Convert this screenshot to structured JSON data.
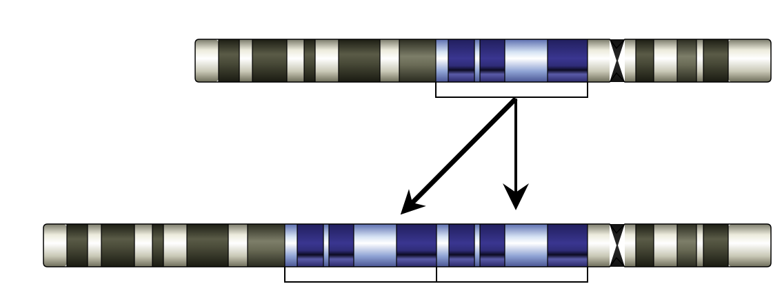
{
  "diagram": {
    "kind": "chromosome-duplication",
    "colors": {
      "background": "#ffffff",
      "outline": "#000000",
      "band_dark": "#3e3f2f",
      "band_mid": "#62634f",
      "band_light": "#ecebdc",
      "duplicated_dark": "#2f2c78",
      "duplicated_light": "#d6e3f4",
      "centromere": "#111111"
    },
    "original_chromosome": {
      "duplicated_segment_count": 1,
      "p_arm_bands": [
        "light",
        "dark",
        "light",
        "dark",
        "light",
        "dark",
        "light",
        "dark",
        "light",
        "mid",
        "light",
        "dup-light",
        "dup-dark",
        "dup-light",
        "dup-dark",
        "dup-light",
        "dup-dark",
        "light"
      ],
      "q_arm_bands": [
        "light",
        "dark",
        "light",
        "mid",
        "dark",
        "light",
        "dark",
        "light"
      ]
    },
    "duplicated_chromosome": {
      "duplicated_segment_count": 2,
      "p_arm_bands": [
        "light",
        "dark",
        "light",
        "dark",
        "light",
        "dark",
        "light",
        "dark",
        "light",
        "mid",
        "light",
        "dark",
        "dup-light",
        "dup-dark",
        "dup-light",
        "dup-dark",
        "dup-light",
        "dup-dark",
        "dup-light",
        "dup-dark",
        "dup-light",
        "dup-dark",
        "dup-light",
        "dup-dark",
        "light"
      ],
      "q_arm_bands": [
        "light",
        "dark",
        "light",
        "mid",
        "dark",
        "light",
        "dark",
        "light"
      ]
    },
    "arrows": [
      {
        "from": "original-segment",
        "to": "duplicate-copy-1"
      },
      {
        "from": "original-segment",
        "to": "duplicate-copy-2"
      }
    ]
  }
}
